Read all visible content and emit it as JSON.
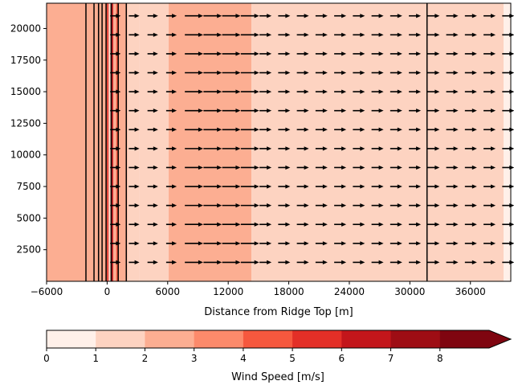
{
  "chart_data": {
    "type": "heatmap",
    "title": "",
    "xlabel": "Distance from Ridge Top [m]",
    "ylabel": "",
    "xlim": [
      -6000,
      40000
    ],
    "ylim": [
      0,
      22000
    ],
    "x_ticks": [
      -6000,
      0,
      6000,
      12000,
      18000,
      24000,
      30000,
      36000
    ],
    "x_tick_labels": [
      "−6000",
      "0",
      "6000",
      "12000",
      "18000",
      "24000",
      "30000",
      "36000"
    ],
    "y_ticks": [
      2500,
      5000,
      7500,
      10000,
      12500,
      15000,
      17500,
      20000
    ],
    "y_tick_labels": [
      "2500",
      "5000",
      "7500",
      "10000",
      "12500",
      "15000",
      "17500",
      "20000"
    ],
    "wind_speed_bands": [
      {
        "x0": -6000,
        "x1": -200,
        "speed_class": 2
      },
      {
        "x0": -200,
        "x1": 0,
        "speed_class": 3
      },
      {
        "x0": 0,
        "x1": 150,
        "speed_class": 5
      },
      {
        "x0": 150,
        "x1": 450,
        "speed_class": 1
      },
      {
        "x0": 450,
        "x1": 600,
        "speed_class": 6
      },
      {
        "x0": 600,
        "x1": 900,
        "speed_class": 2
      },
      {
        "x0": 900,
        "x1": 1150,
        "speed_class": 4
      },
      {
        "x0": 1150,
        "x1": 2000,
        "speed_class": 2
      },
      {
        "x0": 2000,
        "x1": 3200,
        "speed_class": 1
      },
      {
        "x0": 3200,
        "x1": 6100,
        "speed_class": 1
      },
      {
        "x0": 6100,
        "x1": 14300,
        "speed_class": 2
      },
      {
        "x0": 14300,
        "x1": 39300,
        "speed_class": 1
      },
      {
        "x0": 39300,
        "x1": 40000,
        "speed_class": 0
      }
    ],
    "vertical_lines_x": [
      -2100,
      -1300,
      -850,
      -500,
      -100,
      400,
      1100,
      1900,
      31700
    ],
    "wind_arrows": {
      "x_start": 300,
      "x_step": 1850,
      "x_end": 39800,
      "y_levels": [
        1500,
        3000,
        4500,
        6000,
        7500,
        9000,
        10500,
        12000,
        13500,
        15000,
        16500,
        18000,
        19500,
        21000
      ],
      "u_near_ridge": 2.2,
      "u_midfield": 3.8,
      "u_far": 2.5
    },
    "colorbar": {
      "label": "Wind Speed [m/s]",
      "levels": [
        0,
        1,
        2,
        3,
        4,
        5,
        6,
        7,
        8
      ],
      "tick_labels": [
        "0",
        "1",
        "2",
        "3",
        "4",
        "5",
        "6",
        "7",
        "8"
      ],
      "colors": [
        "#fff0e9",
        "#fdd3c1",
        "#fcae92",
        "#fc8a6b",
        "#f6583e",
        "#e32f27",
        "#c3161b",
        "#9e0d14",
        "#7f0510"
      ],
      "extend": "max",
      "colormap": "Reds"
    }
  }
}
